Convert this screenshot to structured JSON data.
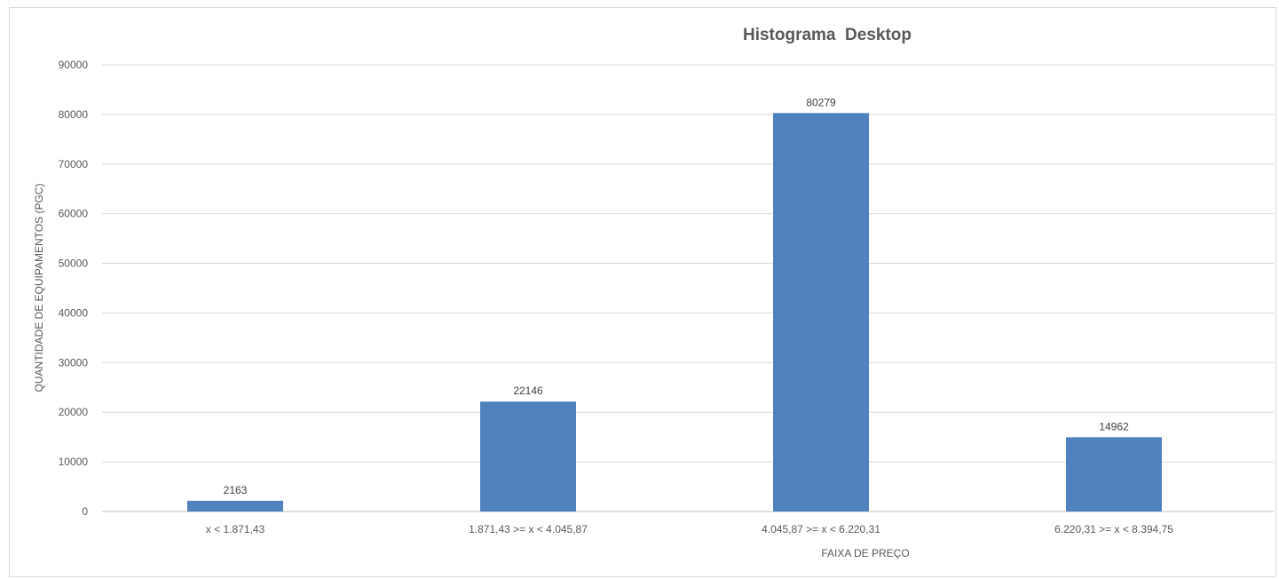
{
  "chart_data": {
    "type": "bar",
    "title": "Histograma  Desktop",
    "xlabel": "FAIXA DE PREÇO",
    "ylabel": "QUANTIDADE DE EQUIPAMENTOS (PGC)",
    "categories": [
      "x < 1.871,43",
      "1.871,43 >= x < 4.045,87",
      "4.045,87 >= x < 6.220,31",
      "6.220,31 >= x < 8.394,75"
    ],
    "values": [
      2163,
      22146,
      80279,
      14962
    ],
    "data_labels": [
      "2163",
      "22146",
      "80279",
      "14962"
    ],
    "ylim": [
      0,
      90000
    ],
    "yticks": [
      "0",
      "10000",
      "20000",
      "30000",
      "40000",
      "50000",
      "60000",
      "70000",
      "80000",
      "90000"
    ],
    "grid": true,
    "legend": "none",
    "colors": {
      "bar": "#4f81bd",
      "grid": "#d9d9d9",
      "text": "#595959"
    }
  }
}
